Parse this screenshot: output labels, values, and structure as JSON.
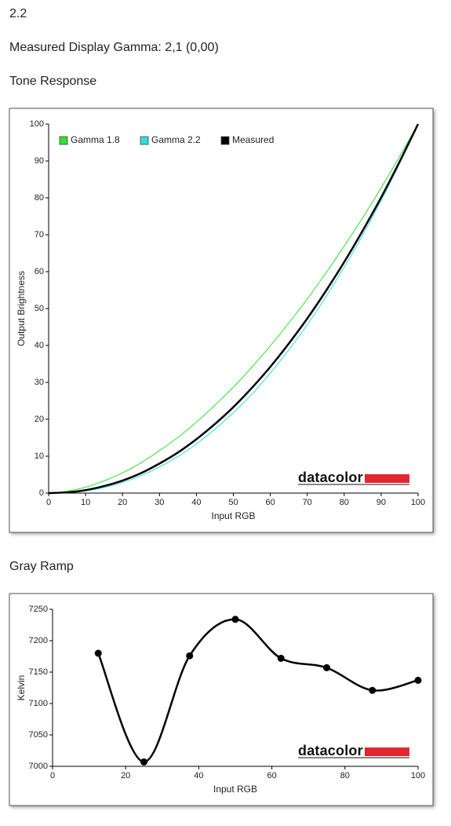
{
  "heading": "2.2",
  "subheading": "Measured Display Gamma: 2,1 (0,00)",
  "chart_data": [
    {
      "type": "line",
      "title": "Tone Response",
      "watermark": "datacolor",
      "x_label": "Input RGB",
      "y_label": "Output Brightness",
      "x": [
        0,
        5,
        10,
        15,
        20,
        25,
        30,
        35,
        40,
        45,
        50,
        55,
        60,
        65,
        70,
        75,
        80,
        85,
        90,
        95,
        100
      ],
      "series": [
        {
          "name": "Gamma 1.8",
          "color": "#33dd33",
          "values": [
            0,
            0.5,
            1.6,
            3.3,
            5.5,
            8.2,
            11.5,
            15.1,
            19.2,
            23.8,
            28.7,
            34.1,
            39.9,
            46.1,
            52.6,
            59.6,
            66.9,
            74.6,
            82.7,
            91.2,
            100
          ]
        },
        {
          "name": "Gamma 2.2",
          "color": "#33dddd",
          "values": [
            0,
            0.1,
            0.6,
            1.5,
            2.9,
            4.7,
            7.1,
            9.9,
            13.3,
            17.3,
            21.8,
            26.8,
            32.5,
            38.8,
            45.6,
            53.1,
            61.2,
            69.9,
            79.3,
            89.3,
            100
          ]
        },
        {
          "name": "Measured",
          "color": "#000000",
          "values": [
            0,
            0.2,
            0.8,
            1.9,
            3.4,
            5.4,
            8.0,
            11.0,
            14.6,
            18.7,
            23.3,
            28.5,
            34.2,
            40.5,
            47.3,
            54.7,
            62.6,
            71.1,
            80.1,
            89.8,
            100
          ]
        }
      ],
      "xlim": [
        0,
        100
      ],
      "xticks": [
        0,
        10,
        20,
        30,
        40,
        50,
        60,
        70,
        80,
        90,
        100
      ],
      "ylim": [
        0,
        100
      ],
      "yticks": [
        0,
        10,
        20,
        30,
        40,
        50,
        60,
        70,
        80,
        90,
        100
      ],
      "grid": false,
      "legend": "upper left",
      "smooth": true,
      "markers": false
    },
    {
      "type": "line",
      "title": "Gray Ramp",
      "watermark": "datacolor",
      "x_label": "Input RGB",
      "y_label": "Kelvin",
      "x": [
        12.5,
        25,
        37.5,
        50,
        62.5,
        75,
        87.5,
        100
      ],
      "values": [
        7180,
        7007,
        7176,
        7234,
        7172,
        7157,
        7121,
        7137
      ],
      "color": "#000000",
      "xlim": [
        0,
        100
      ],
      "xticks": [
        0,
        20,
        40,
        60,
        80,
        100
      ],
      "ylim": [
        7000,
        7250
      ],
      "yticks": [
        7000,
        7050,
        7100,
        7150,
        7200,
        7250
      ],
      "grid": false,
      "smooth": true,
      "markers": true
    }
  ]
}
